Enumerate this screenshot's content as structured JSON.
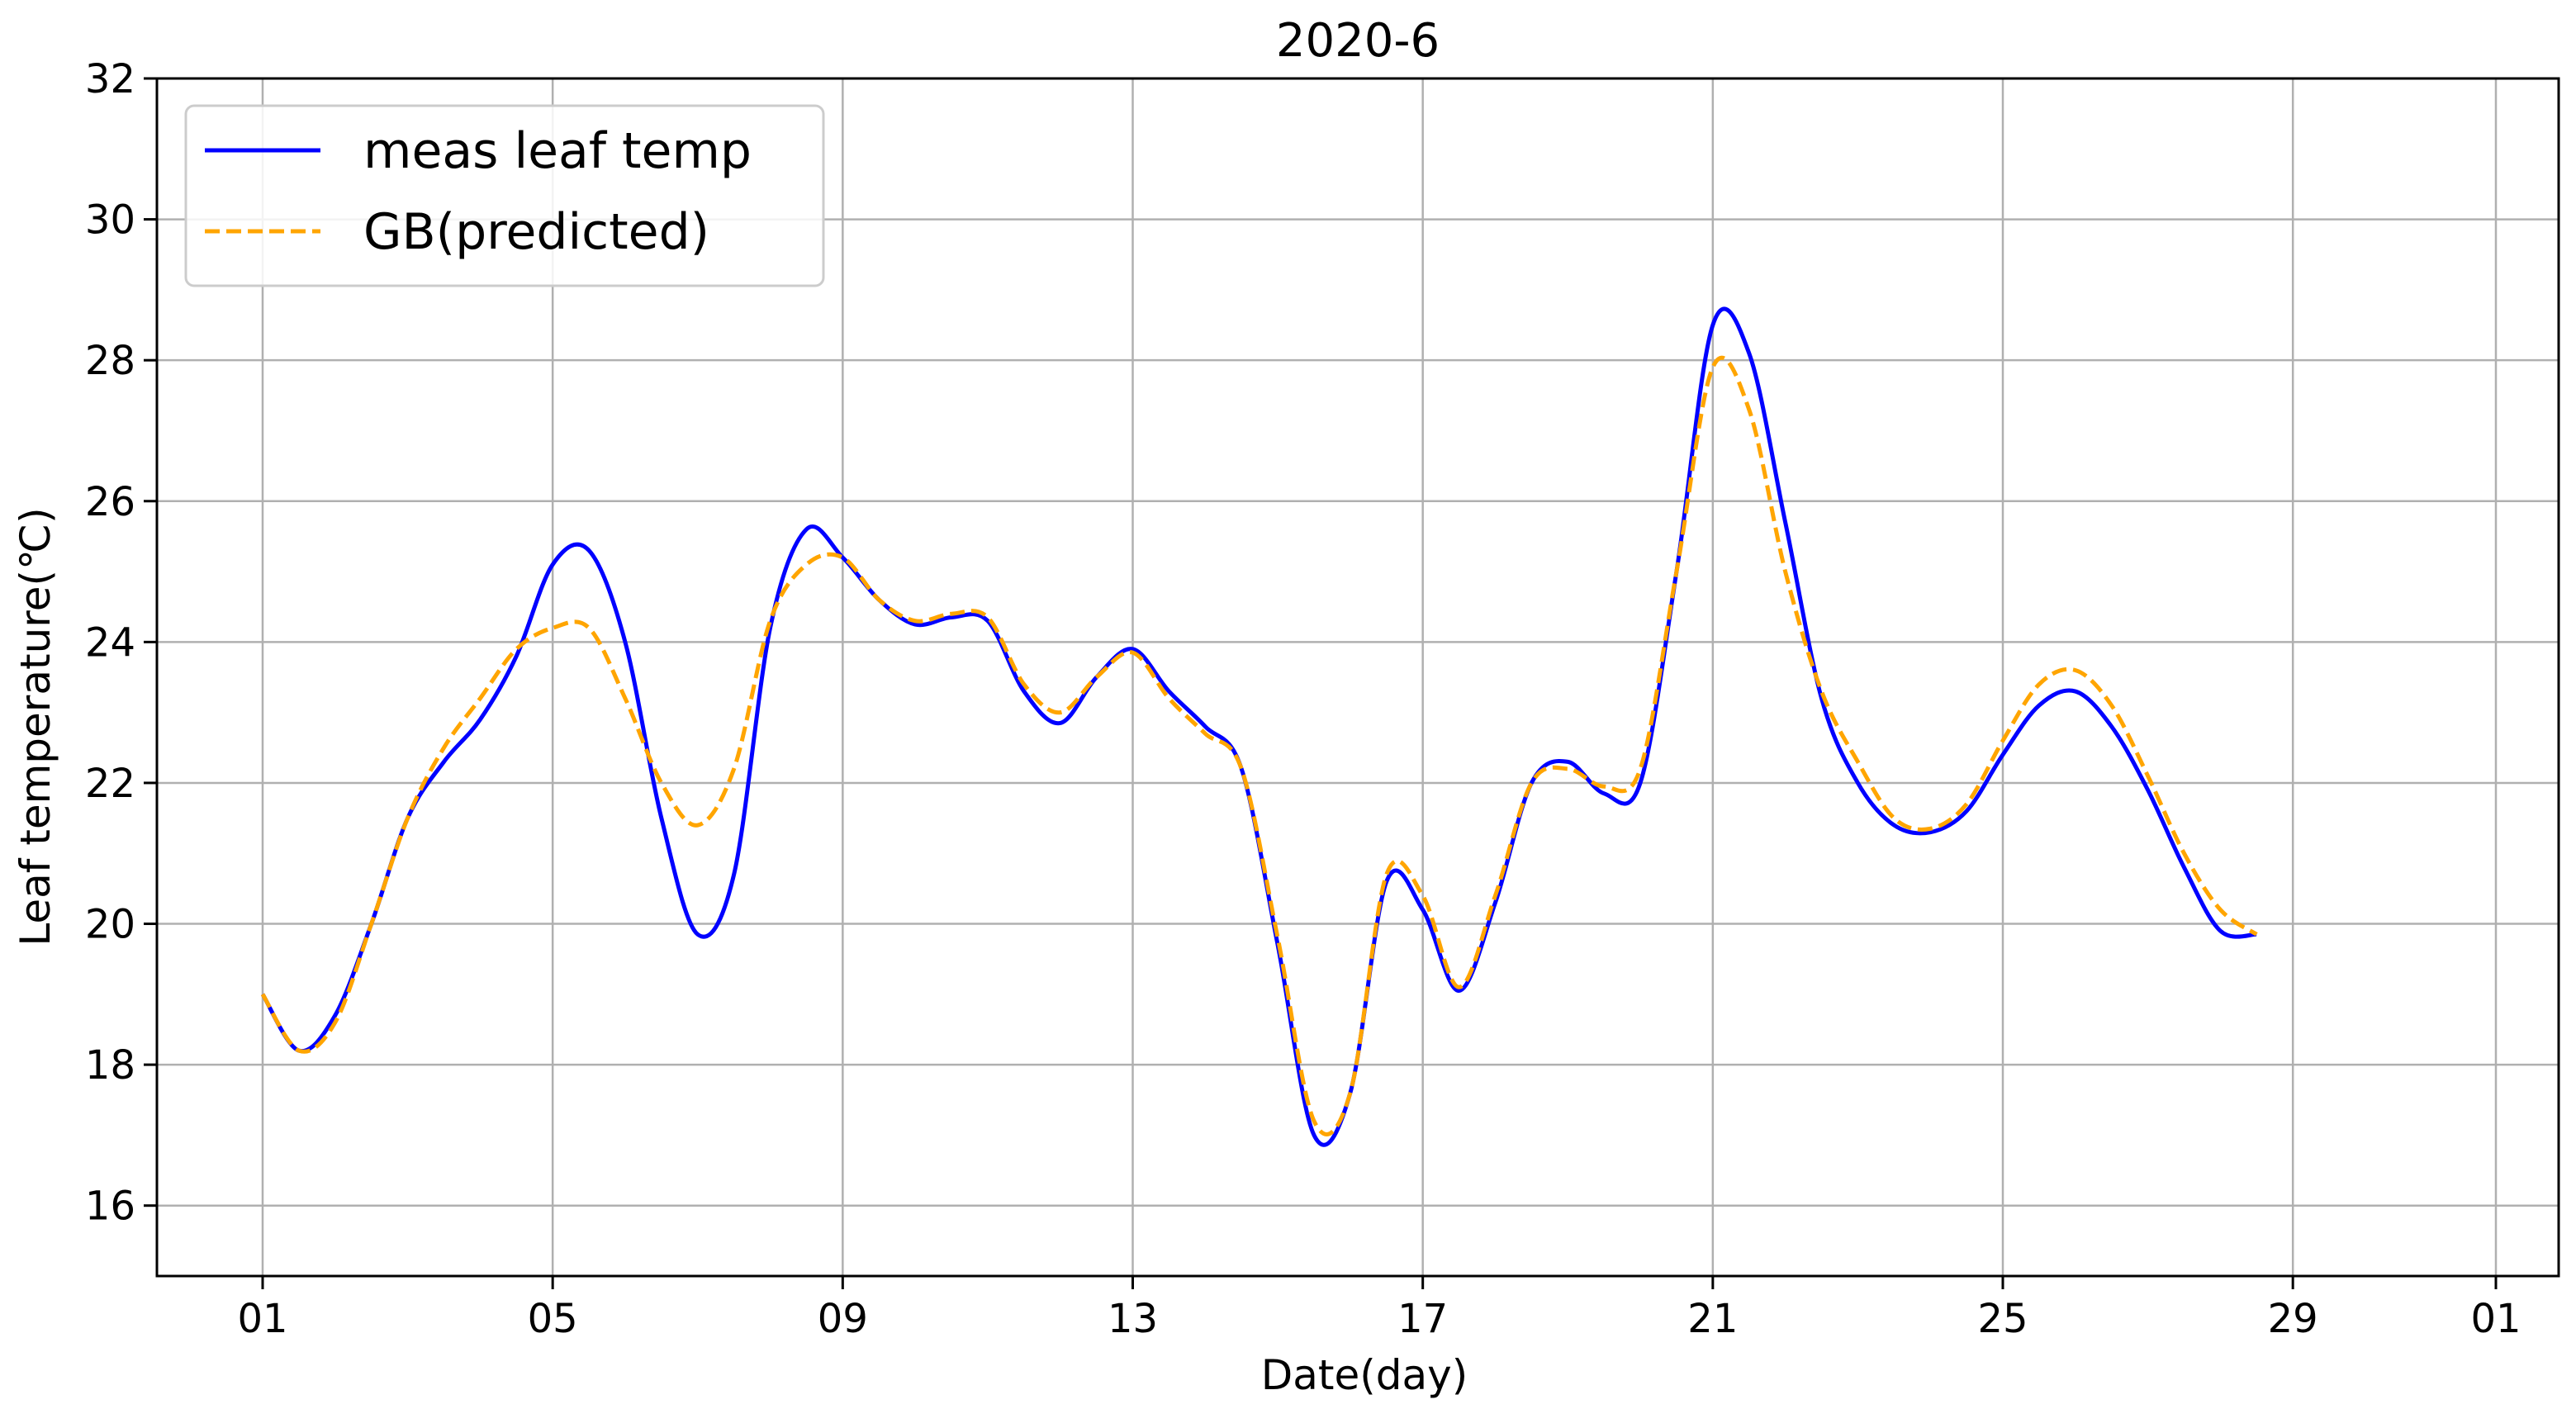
{
  "chart_data": {
    "type": "line",
    "title": "2020-6",
    "xlabel": "Date(day)",
    "ylabel": "Leaf temperature(℃)",
    "xlim": [
      0,
      30.9
    ],
    "ylim": [
      15,
      32
    ],
    "grid": true,
    "legend_position": "top-left",
    "x_ticks": [
      {
        "value": 0,
        "label": "01"
      },
      {
        "value": 4,
        "label": "05"
      },
      {
        "value": 8,
        "label": "09"
      },
      {
        "value": 12,
        "label": "13"
      },
      {
        "value": 16,
        "label": "17"
      },
      {
        "value": 20,
        "label": "21"
      },
      {
        "value": 24,
        "label": "25"
      },
      {
        "value": 28,
        "label": "29"
      },
      {
        "value": 30.8,
        "label": "01"
      }
    ],
    "y_ticks": [
      16,
      18,
      20,
      22,
      24,
      26,
      28,
      30,
      32
    ],
    "x": [
      0,
      0.5,
      1,
      1.5,
      2,
      2.5,
      3,
      3.5,
      4,
      4.5,
      5,
      5.5,
      6,
      6.5,
      7,
      7.5,
      8,
      8.5,
      9,
      9.5,
      10,
      10.5,
      11,
      11.5,
      12,
      12.5,
      13,
      13.5,
      14,
      14.5,
      15,
      15.5,
      16,
      16.5,
      17,
      17.5,
      18,
      18.5,
      19,
      19.5,
      20,
      20.5,
      21,
      21.5,
      22,
      22.5,
      23,
      23.5,
      24,
      24.5,
      25,
      25.5,
      26,
      26.5,
      27,
      27.5,
      28,
      28.5,
      29
    ],
    "series": [
      {
        "name": "meas leaf temp",
        "color": "#0000ff",
        "style": "solid",
        "values": [
          19.0,
          18.2,
          18.7,
          20.0,
          21.5,
          22.3,
          22.9,
          23.8,
          25.1,
          25.3,
          24.0,
          21.5,
          19.85,
          20.7,
          24.2,
          25.6,
          25.2,
          24.6,
          24.25,
          24.35,
          24.3,
          23.3,
          22.85,
          23.5,
          23.9,
          23.3,
          22.8,
          22.2,
          19.7,
          17.0,
          17.6,
          20.6,
          20.2,
          19.05,
          20.3,
          22.0,
          22.3,
          21.85,
          22.0,
          25.0,
          28.5,
          28.1,
          25.7,
          23.2,
          22.0,
          21.4,
          21.3,
          21.6,
          22.4,
          23.1,
          23.3,
          22.8,
          21.9,
          20.8,
          19.9,
          19.85,
          null,
          null,
          null
        ]
      },
      {
        "name": "GB(predicted)",
        "color": "#ffa500",
        "style": "dashed",
        "values": [
          19.0,
          18.2,
          18.6,
          20.0,
          21.5,
          22.5,
          23.2,
          23.9,
          24.2,
          24.2,
          23.2,
          22.0,
          21.4,
          22.2,
          24.3,
          25.1,
          25.2,
          24.6,
          24.3,
          24.4,
          24.35,
          23.4,
          23.0,
          23.5,
          23.85,
          23.2,
          22.7,
          22.2,
          19.8,
          17.2,
          17.6,
          20.7,
          20.4,
          19.1,
          20.4,
          22.0,
          22.2,
          21.95,
          22.2,
          25.0,
          27.9,
          27.3,
          25.0,
          23.3,
          22.3,
          21.5,
          21.35,
          21.7,
          22.6,
          23.4,
          23.6,
          23.1,
          22.1,
          21.0,
          20.2,
          19.85,
          null,
          null,
          null
        ]
      }
    ]
  }
}
